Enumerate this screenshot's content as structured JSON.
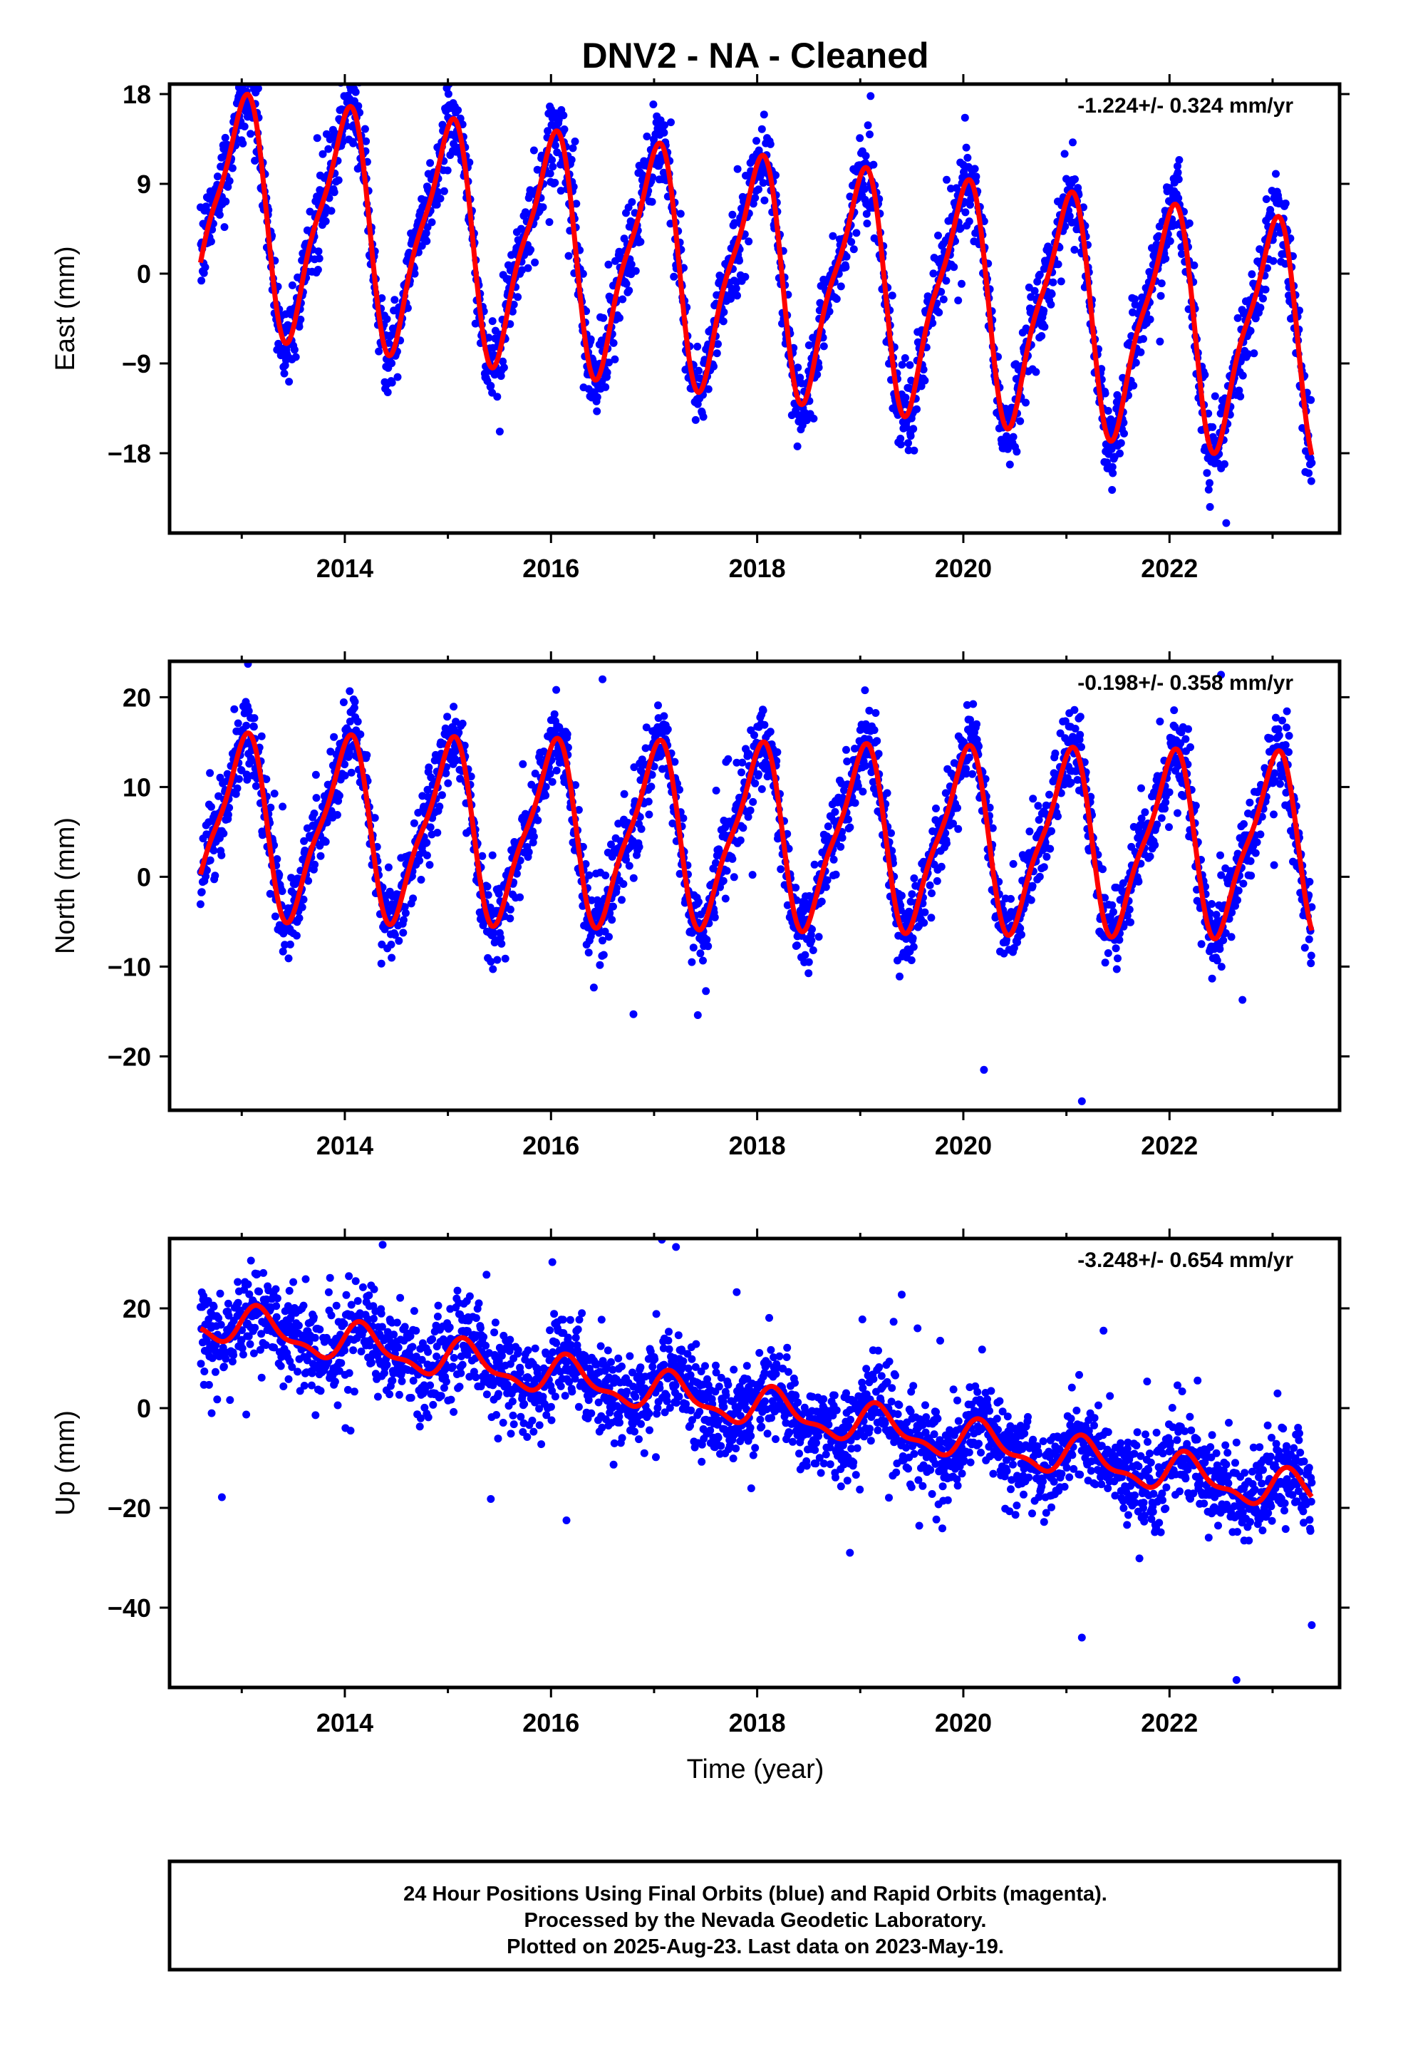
{
  "figure": {
    "title": "DNV2  - NA - Cleaned",
    "xlabel": "Time (year)",
    "footer": [
      "24 Hour Positions Using Final Orbits (blue) and Rapid Orbits (magenta).",
      "Processed by the Nevada Geodetic Laboratory.",
      "Plotted on 2025-Aug-23. Last data on 2023-May-19."
    ],
    "colors": {
      "points": "#0000ff",
      "model": "#ff0000",
      "frame": "#000000"
    }
  },
  "chart_data": [
    {
      "type": "scatter",
      "ylabel": "East (mm)",
      "rate": "-1.224+/- 0.324 mm/yr",
      "xlim": [
        2012.3,
        2023.65
      ],
      "ylim": [
        -26,
        19
      ],
      "xticks": [
        2014,
        2016,
        2018,
        2020,
        2022
      ],
      "yticks": [
        18,
        9,
        0,
        -9,
        -18
      ],
      "ytick_labels": [
        "18",
        "9",
        "0",
        "−9",
        "−18"
      ],
      "model": {
        "start": 2012.6,
        "end": 2023.38,
        "offset": 0,
        "trend": -1.224,
        "amp1": 11.0,
        "phase1": 1.65,
        "amp2": 3.0,
        "phase2": 0.0,
        "y0": 2018.0
      },
      "scatter_sigma": 2.0,
      "outliers": [
        [
          2019.1,
          17.8
        ],
        [
          2022.55,
          -25.0
        ],
        [
          2021.45,
          -20.0
        ],
        [
          2023.35,
          -20.0
        ]
      ]
    },
    {
      "type": "scatter",
      "ylabel": "North (mm)",
      "rate": "-0.198+/- 0.358 mm/yr",
      "xlim": [
        2012.3,
        2023.65
      ],
      "ylim": [
        -26,
        24
      ],
      "xticks": [
        2014,
        2016,
        2018,
        2020,
        2022
      ],
      "yticks": [
        20,
        10,
        0,
        -10,
        -20
      ],
      "ytick_labels": [
        "20",
        "10",
        "0",
        "−10",
        "−20"
      ],
      "model": {
        "start": 2012.6,
        "end": 2023.38,
        "offset": 4.5,
        "trend": -0.198,
        "amp1": 9.5,
        "phase1": 1.57,
        "amp2": 2.5,
        "phase2": 0.0,
        "y0": 2018.0
      },
      "scatter_sigma": 2.2,
      "outliers": [
        [
          2016.5,
          22.0
        ],
        [
          2020.2,
          -21.5
        ],
        [
          2021.15,
          -25.0
        ],
        [
          2022.5,
          22.5
        ],
        [
          2016.8,
          -15.3
        ]
      ]
    },
    {
      "type": "scatter",
      "ylabel": "Up (mm)",
      "rate": "-3.248+/- 0.654 mm/yr",
      "xlim": [
        2012.3,
        2023.65
      ],
      "ylim": [
        -56,
        34
      ],
      "xticks": [
        2014,
        2016,
        2018,
        2020,
        2022
      ],
      "yticks": [
        20,
        0,
        -20,
        -40
      ],
      "ytick_labels": [
        "20",
        "0",
        "−20",
        "−40"
      ],
      "model": {
        "start": 2012.6,
        "end": 2023.38,
        "offset": 0.0,
        "trend": -3.248,
        "amp1": 3.5,
        "phase1": 0.4,
        "amp2": 1.5,
        "phase2": 0.0,
        "y0": 2018.0
      },
      "scatter_sigma": 4.5,
      "outliers": [
        [
          2016.15,
          -22.5
        ],
        [
          2021.15,
          -46.0
        ],
        [
          2022.65,
          -54.5
        ],
        [
          2023.38,
          -43.5
        ],
        [
          2018.9,
          -29.0
        ]
      ]
    }
  ]
}
